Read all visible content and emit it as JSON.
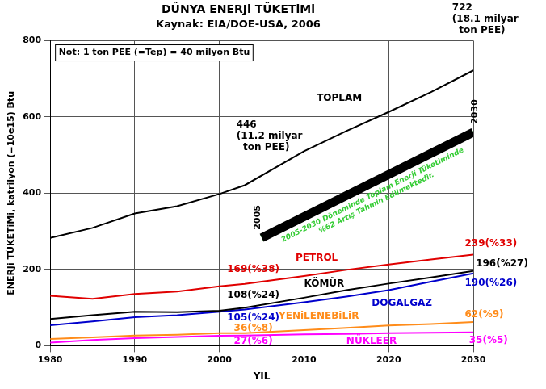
{
  "chart_data": {
    "type": "line",
    "title": "DÜNYA ENERJi TÜKETiMi",
    "subtitle": "Kaynak: EIA/DOE-USA, 2006",
    "x_label": "YIL",
    "y_label": "ENERJi TÜKETiMi, katrilyon (=10e15) Btu",
    "x": [
      1980,
      1985,
      1990,
      1995,
      2000,
      2003,
      2010,
      2015,
      2020,
      2025,
      2030
    ],
    "series": [
      {
        "name": "TOPLAM",
        "color": "#000000",
        "values": [
          283,
          309,
          347,
          366,
          398,
          421,
          510,
          563,
          613,
          665,
          722
        ]
      },
      {
        "name": "PETROL",
        "color": "#e00000",
        "values": [
          131,
          123,
          136,
          142,
          156,
          162,
          183,
          199,
          213,
          226,
          239
        ]
      },
      {
        "name": "KÖMÜR",
        "color": "#000000",
        "values": [
          70,
          80,
          89,
          88,
          92,
          100,
          126,
          146,
          163,
          179,
          196
        ]
      },
      {
        "name": "DOGALGAZ",
        "color": "#0000cc",
        "values": [
          54,
          64,
          75,
          80,
          89,
          95,
          114,
          129,
          146,
          168,
          190
        ]
      },
      {
        "name": "YENiLENEBiLiR",
        "color": "#ff8c1a",
        "values": [
          18,
          22,
          27,
          29,
          33,
          33,
          41,
          47,
          53,
          57,
          62
        ]
      },
      {
        "name": "NÜKLEER",
        "color": "#ff00ff",
        "values": [
          8,
          15,
          20,
          23,
          26,
          27,
          30,
          31,
          33,
          34,
          35
        ]
      }
    ],
    "trend": {
      "x": [
        2005,
        2030
      ],
      "values": [
        283,
        560
      ],
      "color": "#33cc33",
      "end_labels": [
        "2005",
        "2030"
      ],
      "text": [
        "2005-2030 Döneminde Toplam Enerji Tüketiminde",
        "%62 Artış Tahmin Edilmektedir."
      ]
    },
    "note": "Not: 1 ton PEE (=Tep) = 40 milyon Btu",
    "annotations": [
      {
        "text": "722",
        "color": "#000000"
      },
      {
        "text": "(18.1 milyar",
        "color": "#000000"
      },
      {
        "text": "ton PEE)",
        "color": "#000000"
      },
      {
        "text": "446",
        "color": "#000000"
      },
      {
        "text": "(11.2 milyar",
        "color": "#000000"
      },
      {
        "text": "ton PEE)",
        "color": "#000000"
      },
      {
        "text": "TOPLAM",
        "color": "#000000"
      },
      {
        "text": "PETROL",
        "color": "#e00000"
      },
      {
        "text": "KÖMÜR",
        "color": "#000000"
      },
      {
        "text": "DOGALGAZ",
        "color": "#0000cc"
      },
      {
        "text": "YENiLENEBiLiR",
        "color": "#ff8c1a"
      },
      {
        "text": "NÜKLEER",
        "color": "#ff00ff"
      },
      {
        "text": "169(%38)",
        "color": "#e00000"
      },
      {
        "text": "108(%24)",
        "color": "#000000"
      },
      {
        "text": "105(%24)",
        "color": "#0000cc"
      },
      {
        "text": "36(%8)",
        "color": "#ff8c1a"
      },
      {
        "text": "27(%6)",
        "color": "#ff00ff"
      },
      {
        "text": "239(%33)",
        "color": "#e00000"
      },
      {
        "text": "196(%27)",
        "color": "#000000"
      },
      {
        "text": "190(%26)",
        "color": "#0000cc"
      },
      {
        "text": "62(%9)",
        "color": "#ff8c1a"
      },
      {
        "text": "35(%5)",
        "color": "#ff00ff"
      }
    ],
    "xlim": [
      1980,
      2030
    ],
    "xticks": [
      1980,
      1990,
      2000,
      2010,
      2020,
      2030
    ],
    "ylim": [
      0,
      800
    ],
    "yticks": [
      0,
      200,
      400,
      600,
      800
    ],
    "grid": true
  }
}
